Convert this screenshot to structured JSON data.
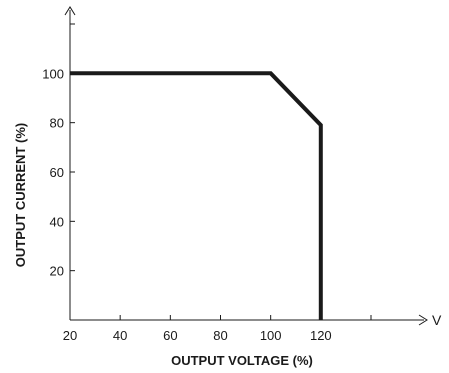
{
  "chart_data": {
    "type": "line",
    "xlabel": "OUTPUT VOLTAGE (%)",
    "ylabel": "OUTPUT CURRENT (%)",
    "x_unit": "V",
    "xlim": [
      20,
      140
    ],
    "ylim": [
      0,
      120
    ],
    "x_ticks": [
      20,
      40,
      60,
      80,
      100,
      120,
      140
    ],
    "x_tick_labels": [
      "20",
      "40",
      "60",
      "80",
      "100",
      "120",
      ""
    ],
    "y_ticks": [
      20,
      40,
      60,
      80,
      100,
      120
    ],
    "y_tick_labels": [
      "20",
      "40",
      "60",
      "80",
      "100",
      ""
    ],
    "series": [
      {
        "x": [
          20,
          100,
          120,
          120
        ],
        "y": [
          100,
          100,
          79,
          0
        ]
      }
    ],
    "grid": false,
    "line_color": "#1a1a1a"
  }
}
